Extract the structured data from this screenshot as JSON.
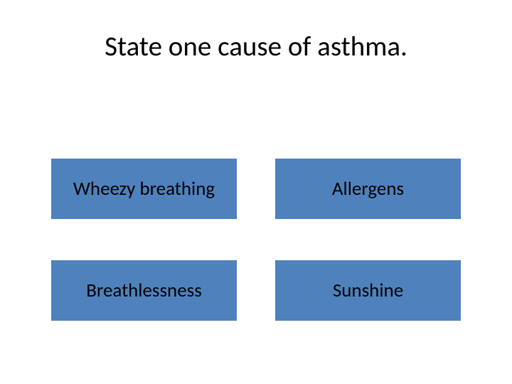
{
  "title": "State one cause of asthma.",
  "options": [
    {
      "label": "Wheezy breathing"
    },
    {
      "label": "Allergens"
    },
    {
      "label": "Breathlessness"
    },
    {
      "label": "Sunshine"
    }
  ],
  "styling": {
    "background_color": "#ffffff",
    "title_fontsize": 39,
    "title_color": "#000000",
    "option_bg_color": "#4f81bd",
    "option_text_color": "#000000",
    "option_fontsize": 27,
    "option_height": 85,
    "grid_column_gap": 54,
    "grid_row_gap": 58,
    "font_family": "Calibri"
  }
}
